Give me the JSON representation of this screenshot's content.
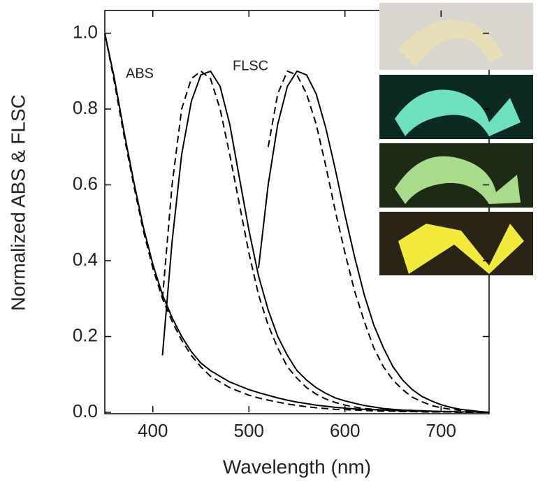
{
  "chart_data": {
    "type": "line",
    "x_label": "Wavelength (nm)",
    "y_label": "Normalized ABS & FLSC",
    "annotations": [
      "ABS",
      "FLSC"
    ],
    "x": [
      350,
      360,
      370,
      380,
      390,
      400,
      410,
      420,
      430,
      440,
      450,
      460,
      470,
      480,
      490,
      500,
      510,
      520,
      530,
      540,
      550,
      560,
      570,
      580,
      590,
      600,
      610,
      620,
      630,
      640,
      650,
      660,
      670,
      680,
      690,
      700,
      710,
      720,
      730,
      740,
      750
    ],
    "series": [
      {
        "color": "#000000",
        "dash": "solid",
        "values": [
          1.0,
          0.88,
          0.74,
          0.61,
          0.49,
          0.39,
          0.31,
          0.25,
          0.2,
          0.16,
          0.13,
          0.11,
          0.095,
          0.08,
          0.07,
          0.06,
          0.052,
          0.045,
          0.038,
          0.032,
          0.027,
          0.023,
          0.019,
          0.016,
          0.013,
          0.011,
          0.009,
          0.008,
          0.007,
          0.006,
          0.005,
          0.004,
          0.004,
          0.003,
          0.003,
          0.002,
          0.002,
          0.001,
          0.001,
          0.001,
          0
        ]
      },
      {
        "color": "#000000",
        "dash": "dashed",
        "values": [
          1.0,
          0.87,
          0.73,
          0.6,
          0.48,
          0.38,
          0.3,
          0.24,
          0.19,
          0.15,
          0.12,
          0.095,
          0.08,
          0.065,
          0.055,
          0.045,
          0.038,
          0.032,
          0.027,
          0.022,
          0.018,
          0.015,
          0.012,
          0.01,
          0.008,
          0.007,
          0.006,
          0.005,
          0.004,
          0.003,
          0.003,
          0.002,
          0.002,
          0.001,
          0.001,
          0.001,
          0.001,
          0,
          0,
          0,
          0
        ]
      },
      {
        "color": "#000000",
        "dash": "solid",
        "values": [
          null,
          null,
          null,
          null,
          null,
          null,
          0.15,
          0.45,
          0.68,
          0.82,
          0.89,
          0.9,
          0.86,
          0.76,
          0.62,
          0.48,
          0.36,
          0.27,
          0.2,
          0.15,
          0.11,
          0.085,
          0.065,
          0.05,
          0.038,
          0.03,
          0.024,
          0.018,
          0.014,
          0.01,
          0.008,
          0.006,
          0.005,
          0.004,
          0.003,
          0.002,
          0.002,
          0.001,
          0.001,
          0.001,
          0
        ]
      },
      {
        "color": "#000000",
        "dash": "dashed",
        "values": [
          null,
          null,
          null,
          null,
          null,
          null,
          0.3,
          0.6,
          0.8,
          0.88,
          0.9,
          0.88,
          0.8,
          0.68,
          0.55,
          0.42,
          0.31,
          0.23,
          0.17,
          0.12,
          0.09,
          0.065,
          0.048,
          0.035,
          0.026,
          0.019,
          0.014,
          0.01,
          0.008,
          0.006,
          0.004,
          0.003,
          0.002,
          0.002,
          0.001,
          0.001,
          0.001,
          0,
          0,
          0,
          0
        ]
      },
      {
        "color": "#000000",
        "dash": "solid",
        "values": [
          null,
          null,
          null,
          null,
          null,
          null,
          null,
          null,
          null,
          null,
          null,
          null,
          null,
          null,
          null,
          null,
          0.38,
          0.6,
          0.76,
          0.86,
          0.9,
          0.89,
          0.84,
          0.75,
          0.64,
          0.52,
          0.41,
          0.31,
          0.23,
          0.17,
          0.12,
          0.085,
          0.06,
          0.042,
          0.03,
          0.02,
          0.013,
          0.008,
          0.005,
          0.002,
          0
        ]
      },
      {
        "color": "#000000",
        "dash": "dashed",
        "values": [
          null,
          null,
          null,
          null,
          null,
          null,
          null,
          null,
          null,
          null,
          null,
          null,
          null,
          null,
          null,
          null,
          null,
          0.7,
          0.84,
          0.9,
          0.89,
          0.84,
          0.76,
          0.65,
          0.53,
          0.42,
          0.32,
          0.24,
          0.17,
          0.12,
          0.085,
          0.06,
          0.04,
          0.028,
          0.018,
          0.012,
          0.008,
          0.005,
          0.003,
          0.001,
          0
        ]
      }
    ],
    "xlim": [
      350,
      750
    ],
    "xticks": [
      400,
      500,
      600,
      700
    ],
    "ylim": [
      0,
      1.06
    ],
    "yticks": [
      {
        "value": 0,
        "label": "0.0"
      },
      0.2,
      0.4,
      0.6,
      0.8,
      {
        "value": 1.0,
        "label": "1.0"
      }
    ],
    "grid": false
  }
}
